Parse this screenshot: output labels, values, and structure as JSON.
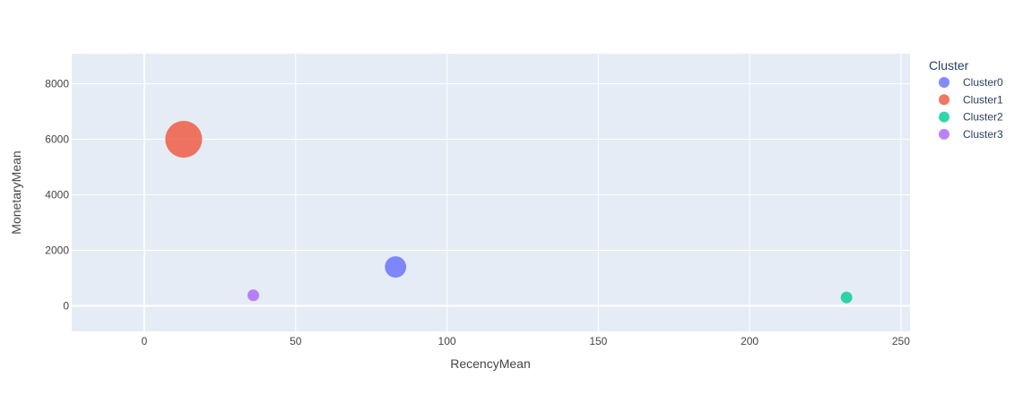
{
  "chart_data": {
    "type": "scatter",
    "subtype": "bubble",
    "xlabel": "RecencyMean",
    "ylabel": "MonetaryMean",
    "xlim": [
      -24,
      253
    ],
    "ylim": [
      -920,
      9080
    ],
    "x_ticks": [
      0,
      50,
      100,
      150,
      200,
      250
    ],
    "y_ticks": [
      0,
      2000,
      4000,
      6000,
      8000
    ],
    "grid": true,
    "legend_title": "Cluster",
    "legend_position": "right",
    "plot_background": "#e5ecf6",
    "marker_opacity": 0.8,
    "series": [
      {
        "name": "Cluster0",
        "color": "#636efa",
        "points": [
          {
            "x": 83,
            "y": 1400,
            "size": 1300
          }
        ]
      },
      {
        "name": "Cluster1",
        "color": "#EF553B",
        "points": [
          {
            "x": 13,
            "y": 6000,
            "size": 3830
          }
        ]
      },
      {
        "name": "Cluster2",
        "color": "#00cc96",
        "points": [
          {
            "x": 232,
            "y": 300,
            "size": 400
          }
        ]
      },
      {
        "name": "Cluster3",
        "color": "#ab63fa",
        "points": [
          {
            "x": 36,
            "y": 380,
            "size": 400
          }
        ]
      }
    ]
  }
}
